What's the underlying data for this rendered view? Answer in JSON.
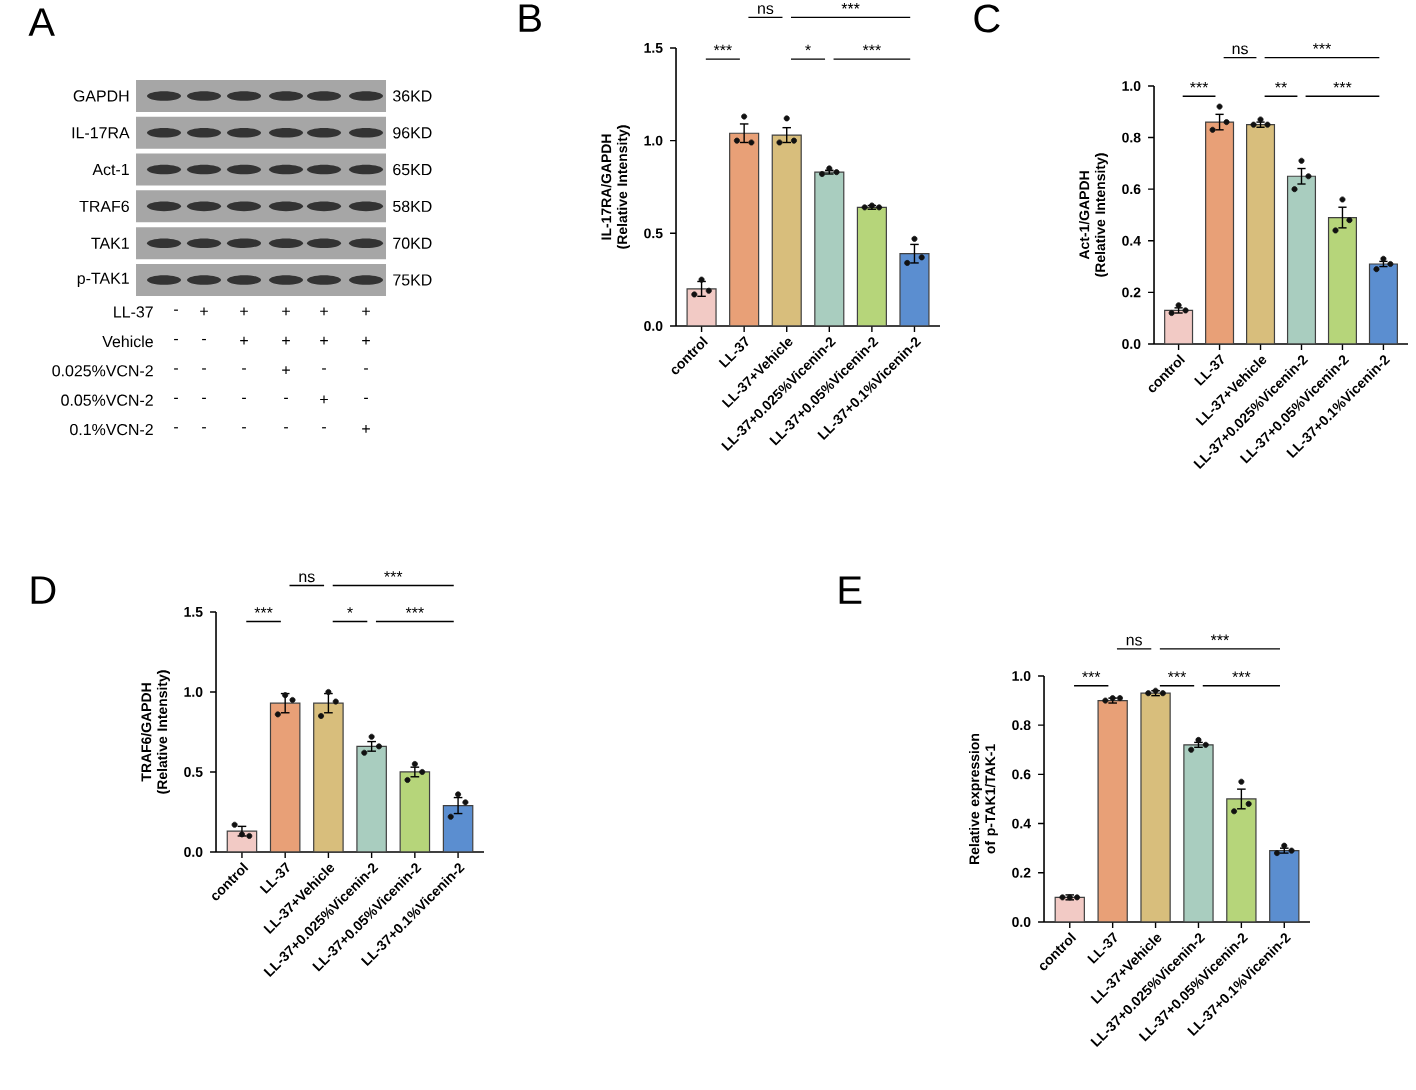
{
  "chart_data": [
    {
      "type": "other",
      "title": "A",
      "y_categories": [
        "GAPDH",
        "IL-17RA",
        "Act-1",
        "TRAF6",
        "TAK1",
        "p-TAK1"
      ],
      "y2_categories": [
        "36KD",
        "96KD",
        "65KD",
        "58KD",
        "70KD",
        "75KD"
      ]
    },
    {
      "type": "other",
      "y_categories": [
        "LL-37",
        "Vehicle",
        "0.025%VCN-2",
        "0.05%VCN-2",
        "0.1%VCN-2"
      ],
      "cell_labels": [
        [
          "-",
          "+",
          "+",
          "+",
          "+",
          "+"
        ],
        [
          "-",
          "-",
          "+",
          "+",
          "+",
          "+"
        ],
        [
          "-",
          "-",
          "-",
          "+",
          "-",
          "-"
        ],
        [
          "-",
          "-",
          "-",
          "-",
          "+",
          "-"
        ],
        [
          "-",
          "-",
          "-",
          "-",
          "-",
          "+"
        ]
      ]
    },
    {
      "type": "bar",
      "title": "B",
      "ylabel": "IL-17RA/GAPDH (Relative Intensity)",
      "categories": [
        "control",
        "LL-37",
        "LL-37+Vehicle",
        "LL-37+0.025%Vicenin-2",
        "LL-37+0.05%Vicenin-2",
        "LL-37+0.1%Vicenin-2"
      ],
      "ylim": [
        0,
        1.5
      ],
      "yticks": [
        {
          "value": 0,
          "label": "0.0"
        },
        {
          "value": 0.5,
          "label": "0.5"
        },
        {
          "value": 1,
          "label": "1.0"
        },
        {
          "value": 1.5,
          "label": "1.5"
        }
      ],
      "series": [
        {
          "values": [
            0.2,
            1.04,
            1.03,
            0.83,
            0.64,
            0.39
          ],
          "errors": [
            0.04,
            0.05,
            0.04,
            0.01,
            0.01,
            0.05
          ],
          "colors": [
            "#f2cac5",
            "#e8a077",
            "#d8be7c",
            "#a9cdbf",
            "#b6d57a",
            "#5b8ed0"
          ]
        },
        {
          "type": "scatter",
          "color": "#111111",
          "x": [
            "control",
            "control",
            "control",
            "LL-37",
            "LL-37",
            "LL-37",
            "LL-37+Vehicle",
            "LL-37+Vehicle",
            "LL-37+Vehicle",
            "LL-37+0.025%Vicenin-2",
            "LL-37+0.025%Vicenin-2",
            "LL-37+0.025%Vicenin-2",
            "LL-37+0.05%Vicenin-2",
            "LL-37+0.05%Vicenin-2",
            "LL-37+0.05%Vicenin-2",
            "LL-37+0.1%Vicenin-2",
            "LL-37+0.1%Vicenin-2",
            "LL-37+0.1%Vicenin-2"
          ],
          "values": [
            0.17,
            0.25,
            0.19,
            1.0,
            1.13,
            0.99,
            0.99,
            1.12,
            1.0,
            0.82,
            0.85,
            0.83,
            0.64,
            0.65,
            0.64,
            0.34,
            0.47,
            0.37
          ]
        }
      ],
      "annotations": [
        "ns",
        "***",
        "***",
        "*",
        "***"
      ]
    },
    {
      "type": "bar",
      "title": "C",
      "ylabel": "Act-1/GAPDH (Relative Intensity)",
      "categories": [
        "control",
        "LL-37",
        "LL-37+Vehicle",
        "LL-37+0.025%Vicenin-2",
        "LL-37+0.05%Vicenin-2",
        "LL-37+0.1%Vicenin-2"
      ],
      "ylim": [
        0,
        1
      ],
      "yticks": [
        {
          "value": 0,
          "label": "0.0"
        },
        {
          "value": 0.2,
          "label": "0.2"
        },
        {
          "value": 0.4,
          "label": "0.4"
        },
        {
          "value": 0.6,
          "label": "0.6"
        },
        {
          "value": 0.8,
          "label": "0.8"
        },
        {
          "value": 1,
          "label": "1.0"
        }
      ],
      "series": [
        {
          "values": [
            0.13,
            0.86,
            0.85,
            0.65,
            0.49,
            0.31
          ],
          "errors": [
            0.01,
            0.03,
            0.01,
            0.03,
            0.04,
            0.01
          ],
          "colors": [
            "#f2cac5",
            "#e8a077",
            "#d8be7c",
            "#a9cdbf",
            "#b6d57a",
            "#5b8ed0"
          ]
        },
        {
          "type": "scatter",
          "color": "#111111",
          "x": [
            "control",
            "control",
            "control",
            "LL-37",
            "LL-37",
            "LL-37",
            "LL-37+Vehicle",
            "LL-37+Vehicle",
            "LL-37+Vehicle",
            "LL-37+0.025%Vicenin-2",
            "LL-37+0.025%Vicenin-2",
            "LL-37+0.025%Vicenin-2",
            "LL-37+0.05%Vicenin-2",
            "LL-37+0.05%Vicenin-2",
            "LL-37+0.05%Vicenin-2",
            "LL-37+0.1%Vicenin-2",
            "LL-37+0.1%Vicenin-2",
            "LL-37+0.1%Vicenin-2"
          ],
          "values": [
            0.12,
            0.15,
            0.13,
            0.83,
            0.92,
            0.86,
            0.85,
            0.87,
            0.85,
            0.6,
            0.71,
            0.65,
            0.44,
            0.56,
            0.48,
            0.29,
            0.33,
            0.31
          ]
        }
      ],
      "annotations": [
        "ns",
        "***",
        "***",
        "**",
        "***"
      ]
    },
    {
      "type": "bar",
      "title": "D",
      "ylabel": "TRAF6/GAPDH (Relative Intensity)",
      "categories": [
        "control",
        "LL-37",
        "LL-37+Vehicle",
        "LL-37+0.025%Vicenin-2",
        "LL-37+0.05%Vicenin-2",
        "LL-37+0.1%Vicenin-2"
      ],
      "ylim": [
        0,
        1.5
      ],
      "yticks": [
        {
          "value": 0,
          "label": "0.0"
        },
        {
          "value": 0.5,
          "label": "0.5"
        },
        {
          "value": 1,
          "label": "1.0"
        },
        {
          "value": 1.5,
          "label": "1.5"
        }
      ],
      "series": [
        {
          "values": [
            0.13,
            0.93,
            0.93,
            0.66,
            0.5,
            0.29
          ],
          "errors": [
            0.03,
            0.06,
            0.06,
            0.03,
            0.03,
            0.05
          ],
          "colors": [
            "#f2cac5",
            "#e8a077",
            "#d8be7c",
            "#a9cdbf",
            "#b6d57a",
            "#5b8ed0"
          ]
        },
        {
          "type": "scatter",
          "color": "#111111",
          "x": [
            "control",
            "control",
            "control",
            "LL-37",
            "LL-37",
            "LL-37",
            "LL-37+Vehicle",
            "LL-37+Vehicle",
            "LL-37+Vehicle",
            "LL-37+0.025%Vicenin-2",
            "LL-37+0.025%Vicenin-2",
            "LL-37+0.025%Vicenin-2",
            "LL-37+0.05%Vicenin-2",
            "LL-37+0.05%Vicenin-2",
            "LL-37+0.05%Vicenin-2",
            "LL-37+0.1%Vicenin-2",
            "LL-37+0.1%Vicenin-2",
            "LL-37+0.1%Vicenin-2"
          ],
          "values": [
            0.17,
            0.11,
            0.1,
            0.86,
            0.98,
            0.95,
            0.85,
            1.0,
            0.94,
            0.62,
            0.72,
            0.66,
            0.45,
            0.55,
            0.5,
            0.22,
            0.36,
            0.31
          ]
        }
      ],
      "annotations": [
        "ns",
        "***",
        "***",
        "*",
        "***"
      ]
    },
    {
      "type": "bar",
      "title": "E",
      "ylabel": "Relative expression of p-TAK1/TAK-1",
      "categories": [
        "control",
        "LL-37",
        "LL-37+Vehicle",
        "LL-37+0.025%Vicenin-2",
        "LL-37+0.05%Vicenin-2",
        "LL-37+0.1%Vicenin-2"
      ],
      "ylim": [
        0,
        1
      ],
      "yticks": [
        {
          "value": 0,
          "label": "0.0"
        },
        {
          "value": 0.2,
          "label": "0.2"
        },
        {
          "value": 0.4,
          "label": "0.4"
        },
        {
          "value": 0.6,
          "label": "0.6"
        },
        {
          "value": 0.8,
          "label": "0.8"
        },
        {
          "value": 1,
          "label": "1.0"
        }
      ],
      "series": [
        {
          "values": [
            0.1,
            0.9,
            0.93,
            0.72,
            0.5,
            0.29
          ],
          "errors": [
            0.01,
            0.01,
            0.01,
            0.01,
            0.04,
            0.01
          ],
          "colors": [
            "#f2cac5",
            "#e8a077",
            "#d8be7c",
            "#a9cdbf",
            "#b6d57a",
            "#5b8ed0"
          ]
        },
        {
          "type": "scatter",
          "color": "#111111",
          "x": [
            "control",
            "control",
            "control",
            "LL-37",
            "LL-37",
            "LL-37",
            "LL-37+Vehicle",
            "LL-37+Vehicle",
            "LL-37+Vehicle",
            "LL-37+0.025%Vicenin-2",
            "LL-37+0.025%Vicenin-2",
            "LL-37+0.025%Vicenin-2",
            "LL-37+0.05%Vicenin-2",
            "LL-37+0.05%Vicenin-2",
            "LL-37+0.05%Vicenin-2",
            "LL-37+0.1%Vicenin-2",
            "LL-37+0.1%Vicenin-2",
            "LL-37+0.1%Vicenin-2"
          ],
          "values": [
            0.1,
            0.1,
            0.1,
            0.9,
            0.91,
            0.91,
            0.93,
            0.94,
            0.93,
            0.7,
            0.74,
            0.72,
            0.45,
            0.57,
            0.48,
            0.28,
            0.31,
            0.29
          ]
        }
      ],
      "annotations": [
        "ns",
        "***",
        "***",
        "***",
        "***"
      ]
    }
  ]
}
